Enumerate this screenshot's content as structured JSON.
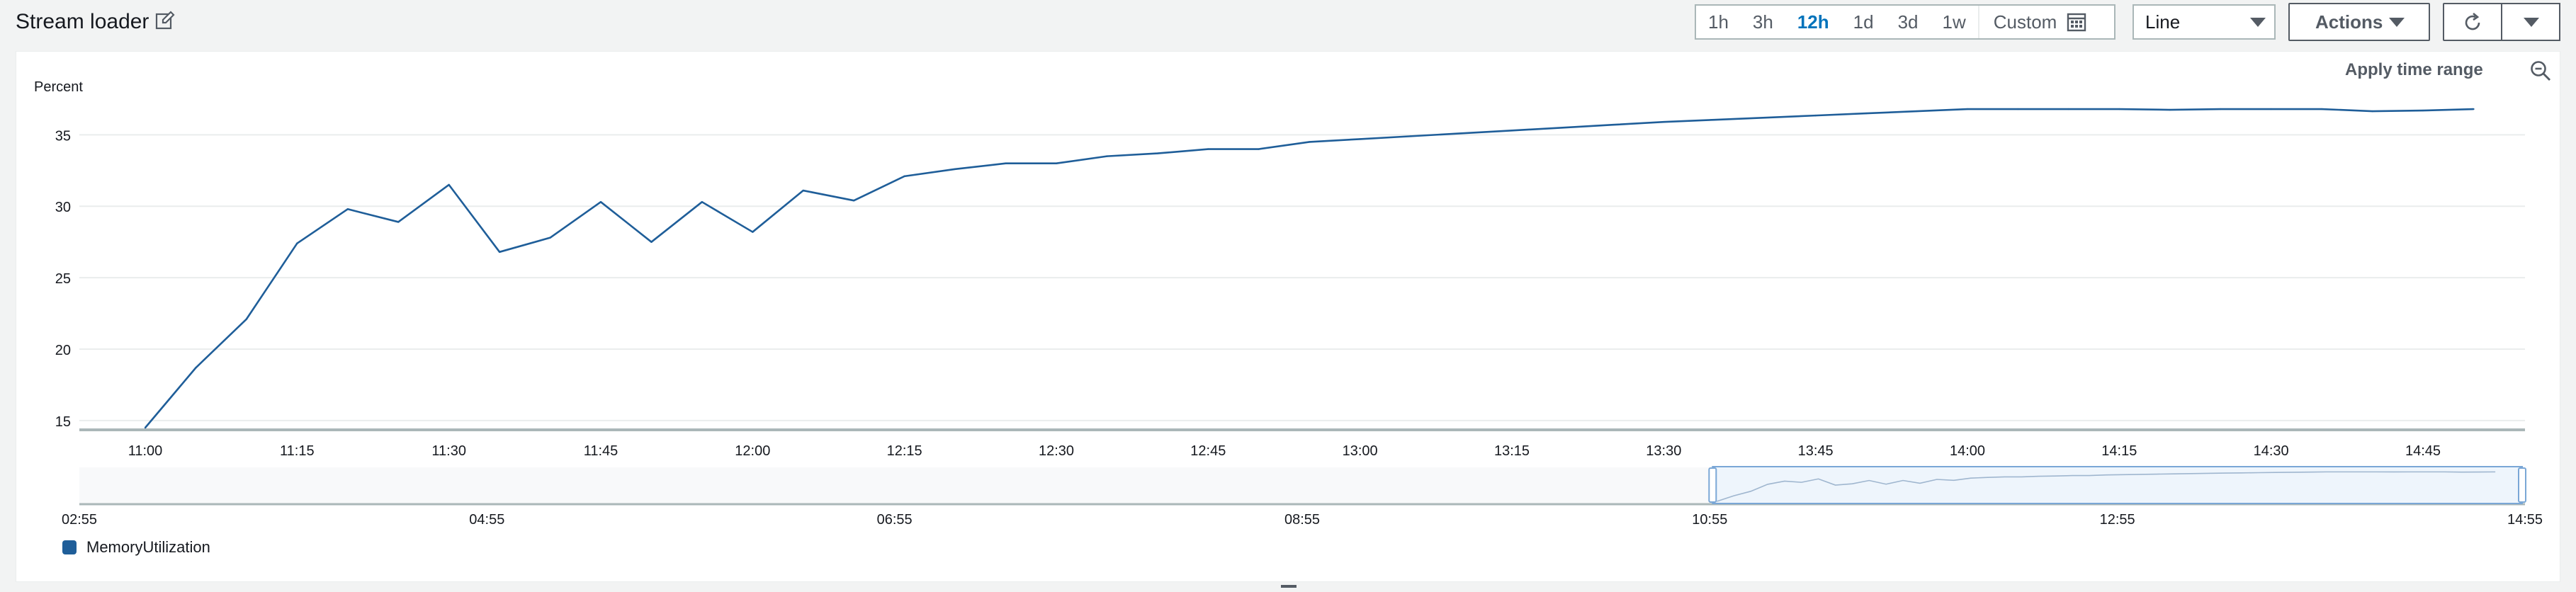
{
  "header": {
    "title": "Stream loader",
    "time_options": [
      "1h",
      "3h",
      "12h",
      "1d",
      "3d",
      "1w"
    ],
    "time_active": "12h",
    "custom_label": "Custom",
    "view_select": "Line",
    "actions_label": "Actions"
  },
  "panel": {
    "apply_time_range": "Apply time range"
  },
  "colors": {
    "series": "#1f5e99",
    "accent": "#0073bb"
  },
  "chart_data": {
    "type": "line",
    "ylabel": "Percent",
    "ylim": [
      14.5,
      37
    ],
    "y_ticks": [
      15,
      20,
      25,
      30,
      35
    ],
    "x_tick_labels": [
      "11:00",
      "11:15",
      "11:30",
      "11:45",
      "12:00",
      "12:15",
      "12:30",
      "12:45",
      "13:00",
      "13:15",
      "13:30",
      "13:45",
      "14:00",
      "14:15",
      "14:30",
      "14:45"
    ],
    "x_range": [
      "11:00",
      "14:55"
    ],
    "grid": "horizontal",
    "series": [
      {
        "name": "MemoryUtilization",
        "x": [
          "11:00",
          "11:05",
          "11:10",
          "11:15",
          "11:20",
          "11:25",
          "11:30",
          "11:35",
          "11:40",
          "11:45",
          "11:50",
          "11:55",
          "12:00",
          "12:05",
          "12:10",
          "12:15",
          "12:20",
          "12:25",
          "12:30",
          "12:35",
          "12:40",
          "12:45",
          "12:50",
          "12:55",
          "13:00",
          "13:05",
          "13:10",
          "13:15",
          "13:20",
          "13:25",
          "13:30",
          "13:35",
          "13:40",
          "13:45",
          "13:50",
          "13:55",
          "14:00",
          "14:05",
          "14:10",
          "14:15",
          "14:20",
          "14:25",
          "14:30",
          "14:35",
          "14:40",
          "14:45",
          "14:50"
        ],
        "values": [
          14.5,
          18.7,
          22.1,
          27.4,
          29.8,
          28.9,
          31.5,
          26.8,
          27.8,
          30.3,
          27.5,
          30.3,
          28.2,
          31.1,
          30.4,
          32.1,
          32.6,
          33.0,
          33.0,
          33.5,
          33.7,
          34.0,
          34.0,
          34.5,
          34.7,
          34.9,
          35.1,
          35.3,
          35.5,
          35.7,
          35.9,
          36.05,
          36.2,
          36.35,
          36.5,
          36.65,
          36.8,
          36.8,
          36.8,
          36.8,
          36.75,
          36.8,
          36.8,
          36.8,
          36.65,
          36.7,
          36.8
        ]
      }
    ],
    "overview": {
      "x_tick_labels": [
        "02:55",
        "04:55",
        "06:55",
        "08:55",
        "10:55",
        "12:55",
        "14:55"
      ],
      "selection": [
        "10:55",
        "14:55"
      ]
    }
  }
}
